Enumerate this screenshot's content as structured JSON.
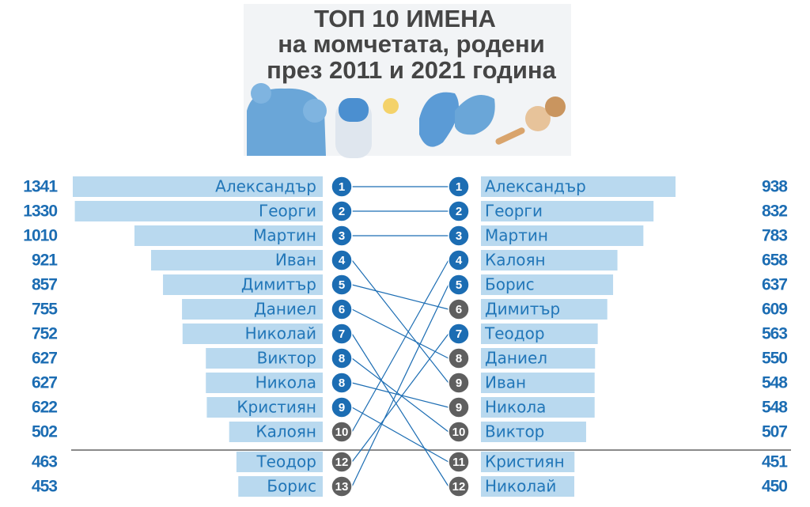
{
  "title": [
    "ТОП 10 ИМЕНА",
    "на момчетата, родени",
    "през 2011 и 2021 година"
  ],
  "chart_data": [
    {
      "type": "bar",
      "orientation": "horizontal",
      "side": "left",
      "color": "#b9d9ef",
      "categories": [
        "Александър",
        "Георги",
        "Мартин",
        "Иван",
        "Димитър",
        "Даниел",
        "Николай",
        "Виктор",
        "Никола",
        "Кристиян",
        "Калоян",
        "Теодор",
        "Борис"
      ],
      "values": [
        1341,
        1330,
        1010,
        921,
        857,
        755,
        752,
        627,
        627,
        622,
        502,
        463,
        453
      ],
      "ranks": [
        1,
        2,
        3,
        4,
        5,
        6,
        7,
        8,
        8,
        9,
        10,
        12,
        13
      ],
      "rank_colors": [
        "#1c6db3",
        "#1c6db3",
        "#1c6db3",
        "#1c6db3",
        "#1c6db3",
        "#1c6db3",
        "#1c6db3",
        "#1c6db3",
        "#1c6db3",
        "#1c6db3",
        "#5f5f5f",
        "#5f5f5f",
        "#5f5f5f"
      ]
    },
    {
      "type": "bar",
      "orientation": "horizontal",
      "side": "right",
      "color": "#b9d9ef",
      "categories": [
        "Александър",
        "Георги",
        "Мартин",
        "Калоян",
        "Борис",
        "Димитър",
        "Теодор",
        "Даниел",
        "Иван",
        "Никола",
        "Виктор",
        "Кристиян",
        "Николай"
      ],
      "values": [
        938,
        832,
        783,
        658,
        637,
        609,
        563,
        550,
        548,
        548,
        507,
        451,
        450
      ],
      "ranks": [
        1,
        2,
        3,
        4,
        5,
        6,
        7,
        8,
        9,
        9,
        10,
        11,
        12
      ],
      "rank_colors": [
        "#1c6db3",
        "#1c6db3",
        "#1c6db3",
        "#1c6db3",
        "#1c6db3",
        "#5f5f5f",
        "#1c6db3",
        "#5f5f5f",
        "#5f5f5f",
        "#5f5f5f",
        "#5f5f5f",
        "#5f5f5f",
        "#5f5f5f"
      ]
    }
  ]
}
